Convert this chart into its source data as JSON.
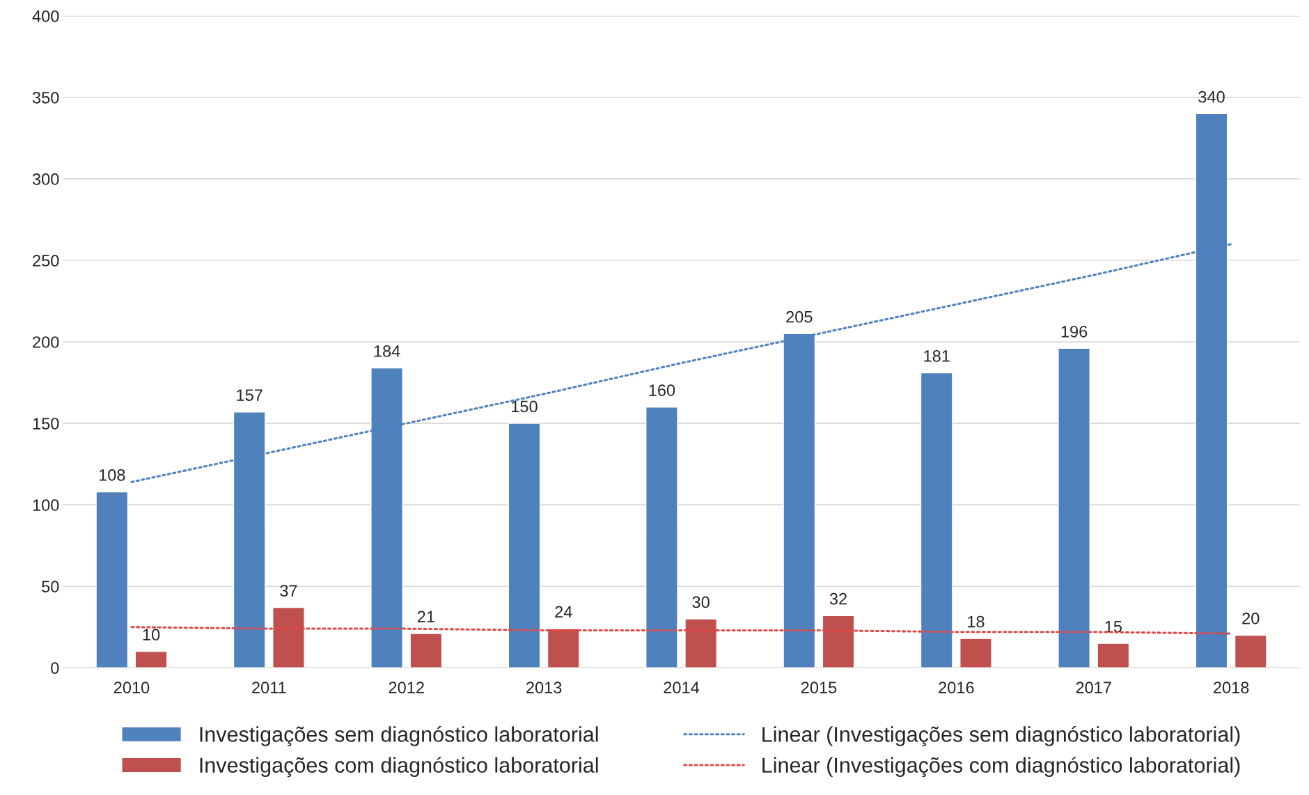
{
  "chart_data": {
    "type": "bar",
    "categories": [
      "2010",
      "2011",
      "2012",
      "2013",
      "2014",
      "2015",
      "2016",
      "2017",
      "2018"
    ],
    "series": [
      {
        "name": "Investigações sem diagnóstico laboratorial",
        "color": "#4f81bd",
        "values": [
          108,
          157,
          184,
          150,
          160,
          205,
          181,
          196,
          340
        ],
        "value_labels": [
          "108",
          "157",
          "184",
          "150",
          "160",
          "205",
          "181",
          "196",
          "340"
        ]
      },
      {
        "name": "Investigações com diagnóstico laboratorial",
        "color": "#c0504d",
        "values": [
          10,
          37,
          21,
          24,
          30,
          32,
          18,
          15,
          20
        ],
        "value_labels": [
          "10",
          "37",
          "21",
          "24",
          "30",
          "32",
          "18",
          "15",
          "20"
        ]
      },
      {
        "name": "Linear (Investigações sem diagnóstico laboratorial)",
        "type": "line",
        "line_style": "dotted",
        "color": "#4f81bd",
        "values": [
          114,
          132,
          150,
          168,
          187,
          205,
          223,
          241,
          260
        ]
      },
      {
        "name": "Linear (Investigações com diagnóstico laboratorial)",
        "type": "line",
        "line_style": "dotted",
        "color": "#e04848",
        "values": [
          25,
          24,
          24,
          23,
          23,
          23,
          22,
          22,
          21
        ]
      }
    ],
    "ylim": [
      0,
      400
    ],
    "yticks": [
      0,
      50,
      100,
      150,
      200,
      250,
      300,
      350,
      400
    ],
    "grid": "y",
    "legend": "bottom"
  }
}
